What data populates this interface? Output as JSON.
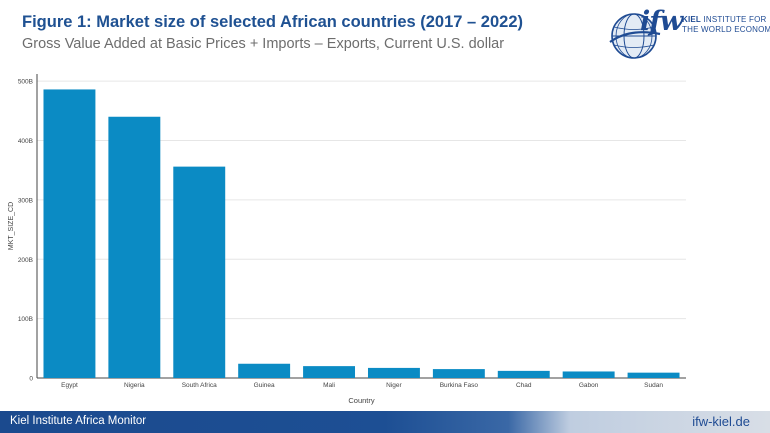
{
  "header": {
    "title": "Figure 1: Market size of selected African countries (2017 – 2022)",
    "subtitle": "Gross Value Added at Basic Prices + Imports – Exports, Current U.S. dollar"
  },
  "logo": {
    "mark": "ifw",
    "line1_bold": "KIEL",
    "line1_rest": " INSTITUTE FOR",
    "line2": "THE WORLD ECONOMY"
  },
  "chart_data": {
    "type": "bar",
    "categories": [
      "Egypt",
      "Nigeria",
      "South Africa",
      "Guinea",
      "Mali",
      "Niger",
      "Burkina Faso",
      "Chad",
      "Gabon",
      "Sudan"
    ],
    "values": [
      486,
      440,
      356,
      24,
      20,
      17,
      15,
      12,
      11,
      9
    ],
    "value_unit": "billion",
    "xlabel": "Country",
    "ylabel": "MKT_SIZE_CD",
    "yticks": [
      0,
      100,
      200,
      300,
      400,
      500
    ],
    "ytick_labels": [
      "0",
      "100B",
      "200B",
      "300B",
      "400B",
      "500B"
    ],
    "ylim": [
      0,
      512
    ],
    "grid": true,
    "colors": {
      "bar": "#0b8bc4"
    }
  },
  "footer": {
    "left": "Kiel Institute Africa Monitor",
    "right": "ifw-kiel.de"
  }
}
